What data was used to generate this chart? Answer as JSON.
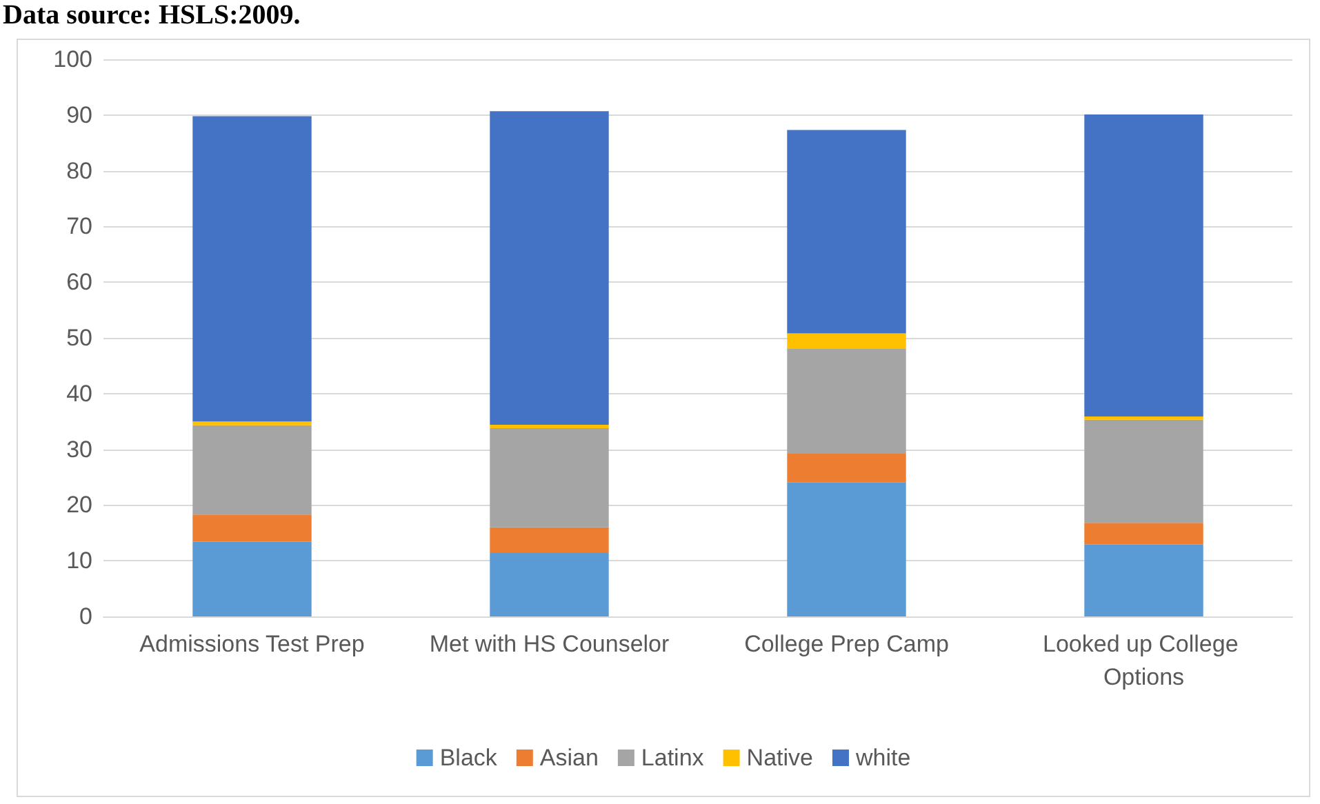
{
  "chart_data": {
    "type": "bar",
    "stacked": true,
    "annotations": [
      "Data source: HSLS:2009."
    ],
    "categories": [
      "Admissions Test Prep",
      "Met with HS Counselor",
      "College Prep Camp",
      "Looked up College Options"
    ],
    "series": [
      {
        "name": "Black",
        "color": "#5b9bd5",
        "values": [
          13.4,
          11.4,
          24.1,
          12.9
        ]
      },
      {
        "name": "Asian",
        "color": "#ed7d31",
        "values": [
          4.9,
          4.6,
          5.1,
          3.9
        ]
      },
      {
        "name": "Latinx",
        "color": "#a5a5a5",
        "values": [
          16.0,
          17.8,
          18.9,
          18.5
        ]
      },
      {
        "name": "Native",
        "color": "#ffc000",
        "values": [
          0.7,
          0.6,
          2.7,
          0.6
        ]
      },
      {
        "name": "white",
        "color": "#4472c4",
        "values": [
          54.8,
          56.3,
          36.5,
          54.2
        ]
      }
    ],
    "ylim": [
      0,
      100
    ],
    "yticks": [
      0,
      10,
      20,
      30,
      40,
      50,
      60,
      70,
      80,
      90,
      100
    ],
    "grid": "y",
    "legend": "bottom"
  }
}
